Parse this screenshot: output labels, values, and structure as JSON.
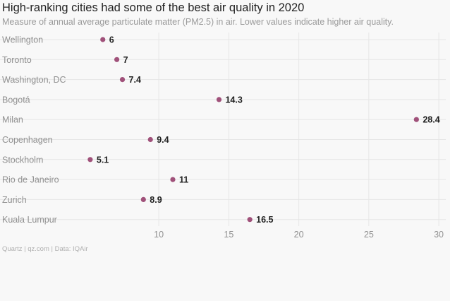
{
  "title": "High-ranking cities had some of the best air quality in 2020",
  "subtitle": "Measure of annual average particulate matter (PM2.5) in air. Lower values indicate higher air quality.",
  "footer": "Quartz | qz.com | Data: IQAir",
  "colors": {
    "dot": "#a0517a",
    "grid": "#e6e6e6",
    "background": "#f8f8f8"
  },
  "chart_data": {
    "type": "scatter",
    "title": "High-ranking cities had some of the best air quality in 2020",
    "subtitle": "Measure of annual average particulate matter (PM2.5) in air. Lower values indicate higher air quality.",
    "categories": [
      "Wellington",
      "Toronto",
      "Washington, DC",
      "Bogotá",
      "Milan",
      "Copenhagen",
      "Stockholm",
      "Rio de Janeiro",
      "Zurich",
      "Kuala Lumpur"
    ],
    "values": [
      6,
      7,
      7.4,
      14.3,
      28.4,
      9.4,
      5.1,
      11,
      8.9,
      16.5
    ],
    "value_labels": [
      "6",
      "7",
      "7.4",
      "14.3",
      "28.4",
      "9.4",
      "5.1",
      "11",
      "8.9",
      "16.5"
    ],
    "x_ticks": [
      10,
      15,
      20,
      25,
      30
    ],
    "xlim": [
      4.3,
      30.5
    ],
    "xlabel": "",
    "ylabel": "",
    "grid": true,
    "legend": "none"
  }
}
